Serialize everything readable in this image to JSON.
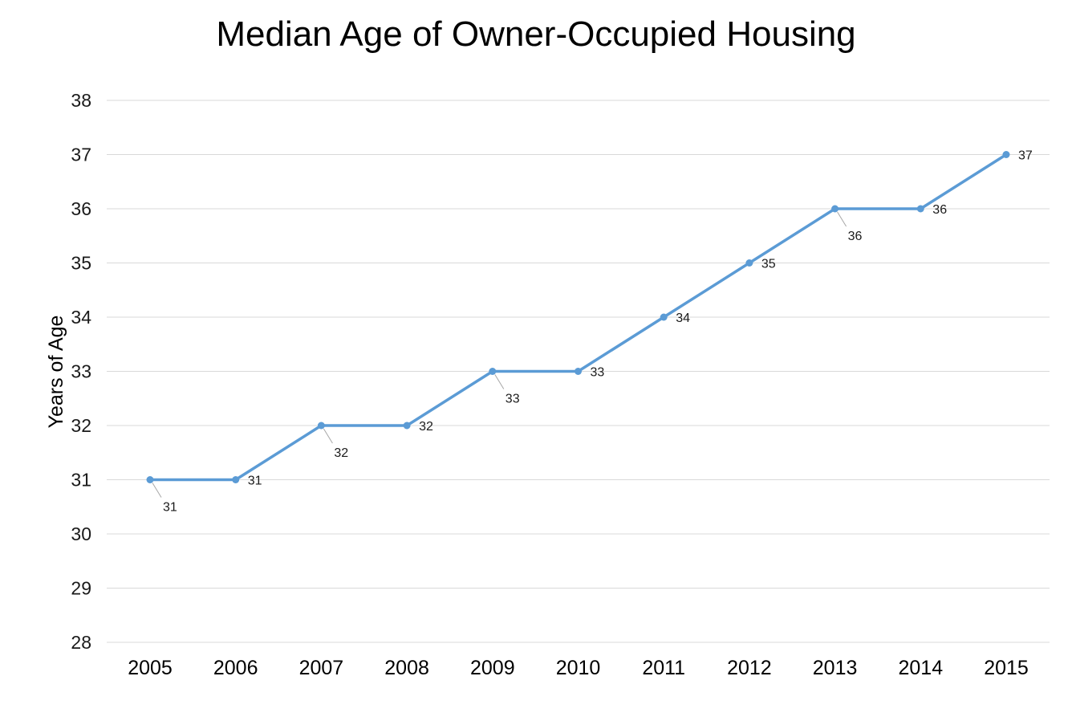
{
  "chart_data": {
    "type": "line",
    "title": "Median Age of Owner-Occupied Housing",
    "xlabel": "",
    "ylabel": "Years of Age",
    "categories": [
      "2005",
      "2006",
      "2007",
      "2008",
      "2009",
      "2010",
      "2011",
      "2012",
      "2013",
      "2014",
      "2015"
    ],
    "series": [
      {
        "values": [
          31,
          31,
          32,
          32,
          33,
          33,
          34,
          35,
          36,
          36,
          37
        ],
        "data_labels": [
          "31",
          "31",
          "32",
          "32",
          "33",
          "33",
          "34",
          "35",
          "36",
          "36",
          "37"
        ],
        "color": "#5b9bd5"
      }
    ],
    "ylim": [
      28,
      38
    ],
    "yticks": [
      "28",
      "29",
      "30",
      "31",
      "32",
      "33",
      "34",
      "35",
      "36",
      "37",
      "38"
    ],
    "grid": true,
    "legend": "none",
    "markers": true
  }
}
